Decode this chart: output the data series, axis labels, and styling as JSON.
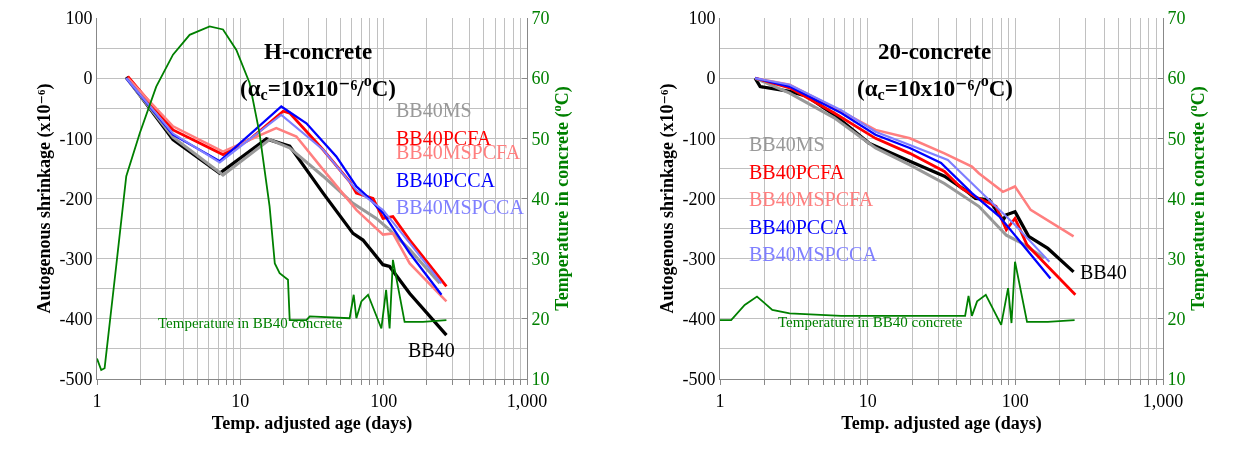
{
  "chart_data": [
    {
      "type": "line",
      "title": "H-concrete",
      "subtitle": "(α$_{c}$=10x10⁻⁶/$^{o}$C)",
      "xlabel": "Temp. adjusted age (days)",
      "ylabel": "Autogenous shrinkage (x10⁻⁶)",
      "y2label": "Temperature in concrete ($^{o}$C)",
      "log": "x",
      "grid": true,
      "legend": false,
      "marker": "none",
      "line_style": "solid",
      "xlim": [
        1,
        1000
      ],
      "xticks": [
        1,
        {
          "value": 2,
          "label": null
        },
        {
          "value": 3,
          "label": null
        },
        {
          "value": 4,
          "label": null
        },
        {
          "value": 5,
          "label": null
        },
        {
          "value": 6,
          "label": null
        },
        {
          "value": 7,
          "label": null
        },
        {
          "value": 8,
          "label": null
        },
        {
          "value": 9,
          "label": null
        },
        10,
        {
          "value": 20,
          "label": null
        },
        {
          "value": 30,
          "label": null
        },
        {
          "value": 40,
          "label": null
        },
        {
          "value": 50,
          "label": null
        },
        {
          "value": 60,
          "label": null
        },
        {
          "value": 70,
          "label": null
        },
        {
          "value": 80,
          "label": null
        },
        {
          "value": 90,
          "label": null
        },
        100,
        {
          "value": 200,
          "label": null
        },
        {
          "value": 300,
          "label": null
        },
        {
          "value": 400,
          "label": null
        },
        {
          "value": 500,
          "label": null
        },
        {
          "value": 600,
          "label": null
        },
        {
          "value": 700,
          "label": null
        },
        {
          "value": 800,
          "label": null
        },
        {
          "value": 900,
          "label": null
        },
        {
          "value": 1000,
          "label": "1,000"
        }
      ],
      "ylim": [
        -500,
        100
      ],
      "yticks": [
        -500,
        {
          "value": -450,
          "label": null
        },
        -400,
        {
          "value": -350,
          "label": null
        },
        -300,
        {
          "value": -250,
          "label": null
        },
        -200,
        {
          "value": -150,
          "label": null
        },
        -100,
        {
          "value": -50,
          "label": null
        },
        0,
        {
          "value": 50,
          "label": null
        },
        100
      ],
      "y2lim": [
        10,
        70
      ],
      "y2ticks": [
        10,
        20,
        30,
        40,
        50,
        60,
        70
      ],
      "series": [
        {
          "name": "BB40",
          "color": "#000000",
          "x": [
            1.6,
            3.39,
            7.18,
            15.2,
            22.1,
            37.8,
            61.1,
            71.7,
            98.9,
            110,
            152,
            274
          ],
          "values": [
            2,
            -102,
            -158,
            -101,
            -113,
            -191,
            -258,
            -269,
            -310,
            -313,
            -358,
            -427
          ]
        },
        {
          "name": "BB40MS",
          "color": "#999999",
          "x": [
            1.6,
            3.39,
            7.57,
            16.0,
            22.1,
            37.8,
            61.1,
            88.9,
            110,
            152,
            246
          ],
          "values": [
            0,
            -98,
            -161,
            -102,
            -116,
            -163,
            -208,
            -233,
            -252,
            -285,
            -341
          ]
        },
        {
          "name": "BB40PCFA",
          "color": "#ff0000",
          "x": [
            1.64,
            3.39,
            7.57,
            11.6,
            19.9,
            22.1,
            37.8,
            57.9,
            64.5,
            84.3,
            98.9,
            116,
            152,
            274
          ],
          "values": [
            3,
            -86,
            -127,
            -102,
            -55,
            -58,
            -119,
            -172,
            -191,
            -200,
            -233,
            -230,
            -269,
            -346
          ]
        },
        {
          "name": "BB40MSPCFA",
          "color": "#ff7f7f",
          "x": [
            1.64,
            3.39,
            7.57,
            17.8,
            24.6,
            37.8,
            64.5,
            98.9,
            116,
            152,
            274
          ],
          "values": [
            0,
            -80,
            -122,
            -83,
            -97,
            -152,
            -219,
            -260,
            -258,
            -308,
            -371
          ]
        },
        {
          "name": "BB40PCCA",
          "color": "#0000ff",
          "x": [
            1.6,
            3.39,
            7.18,
            19.3,
            28.9,
            46.7,
            64.5,
            79.8,
            88.9,
            98.9,
            152,
            253
          ],
          "values": [
            0,
            -94,
            -138,
            -47,
            -75,
            -130,
            -180,
            -200,
            -213,
            -224,
            -291,
            -360
          ]
        },
        {
          "name": "BB40MSPCCA",
          "color": "#7f7fff",
          "x": [
            1.6,
            3.39,
            7.18,
            19.3,
            37.8,
            64.5,
            98.9,
            152,
            253
          ],
          "values": [
            0,
            -92,
            -140,
            -61,
            -119,
            -186,
            -219,
            -274,
            -341
          ]
        },
        {
          "name": "Temperature in BB40 concrete",
          "color": "#008000",
          "axis": "y2",
          "x": [
            1,
            1.07,
            1.13,
            1.36,
            1.6,
            1.99,
            2.59,
            3.39,
            4.43,
            6.11,
            7.57,
            9.38,
            11.6,
            13.6,
            16.0,
            17.4,
            18.8,
            21.5,
            22.1,
            28.9,
            30.5,
            57.9,
            61.8,
            64.5,
            69.9,
            77.8,
            96.4,
            104,
            110,
            116,
            140,
            188,
            274
          ],
          "values": [
            13.4,
            11.5,
            11.8,
            28.7,
            43.7,
            50.9,
            58.6,
            63.9,
            67.2,
            68.6,
            68.1,
            64.7,
            59.2,
            50.9,
            38.7,
            29.2,
            27.6,
            26.5,
            19.8,
            19.8,
            20.4,
            20.1,
            24,
            20.1,
            22.9,
            24,
            18.4,
            24.8,
            18.4,
            29.8,
            19.5,
            19.5,
            19.8
          ]
        }
      ]
    },
    {
      "type": "line",
      "title": "20-concrete",
      "subtitle": "(α$_{c}$=10x10⁻⁶/$^{o}$C)",
      "xlabel": "Temp. adjusted age (days)",
      "ylabel": "Autogenous shrinkage (x10⁻⁶)",
      "y2label": "Temperature in concrete ($^{o}$C)",
      "log": "x",
      "grid": true,
      "legend": false,
      "marker": "none",
      "line_style": "solid",
      "xlim": [
        1,
        1000
      ],
      "xticks": [
        1,
        {
          "value": 2,
          "label": null
        },
        {
          "value": 3,
          "label": null
        },
        {
          "value": 4,
          "label": null
        },
        {
          "value": 5,
          "label": null
        },
        {
          "value": 6,
          "label": null
        },
        {
          "value": 7,
          "label": null
        },
        {
          "value": 8,
          "label": null
        },
        {
          "value": 9,
          "label": null
        },
        10,
        {
          "value": 20,
          "label": null
        },
        {
          "value": 30,
          "label": null
        },
        {
          "value": 40,
          "label": null
        },
        {
          "value": 50,
          "label": null
        },
        {
          "value": 60,
          "label": null
        },
        {
          "value": 70,
          "label": null
        },
        {
          "value": 80,
          "label": null
        },
        {
          "value": 90,
          "label": null
        },
        100,
        {
          "value": 200,
          "label": null
        },
        {
          "value": 300,
          "label": null
        },
        {
          "value": 400,
          "label": null
        },
        {
          "value": 500,
          "label": null
        },
        {
          "value": 600,
          "label": null
        },
        {
          "value": 700,
          "label": null
        },
        {
          "value": 800,
          "label": null
        },
        {
          "value": 900,
          "label": null
        },
        {
          "value": 1000,
          "label": "1,000"
        }
      ],
      "ylim": [
        -500,
        100
      ],
      "yticks": [
        -500,
        {
          "value": -450,
          "label": null
        },
        -400,
        {
          "value": -350,
          "label": null
        },
        -300,
        {
          "value": -250,
          "label": null
        },
        -200,
        {
          "value": -150,
          "label": null
        },
        -100,
        {
          "value": -50,
          "label": null
        },
        0,
        {
          "value": 50,
          "label": null
        },
        100
      ],
      "y2lim": [
        10,
        70
      ],
      "y2ticks": [
        10,
        20,
        30,
        40,
        50,
        60,
        70
      ],
      "series": [
        {
          "name": "BB40",
          "color": "#000000",
          "x": [
            1.73,
            1.87,
            2.96,
            3.87,
            5.94,
            10.2,
            19.3,
            33.1,
            45.7,
            53.7,
            66.5,
            82.4,
            86.9,
            99.5,
            123,
            166,
            248
          ],
          "values": [
            0,
            -14,
            -22,
            -30,
            -61,
            -108,
            -138,
            -163,
            -186,
            -200,
            -202,
            -236,
            -227,
            -222,
            -263,
            -283,
            -322
          ]
        },
        {
          "name": "BB40MS",
          "color": "#999999",
          "x": [
            1.73,
            2.96,
            5.94,
            11.3,
            19.3,
            33.1,
            56.6,
            86.9,
            110,
            157
          ],
          "values": [
            0,
            -25,
            -66,
            -116,
            -144,
            -175,
            -213,
            -261,
            -274,
            -299
          ]
        },
        {
          "name": "BB40PCFA",
          "color": "#ff0000",
          "x": [
            1.73,
            2.96,
            5.94,
            11.3,
            19.3,
            33.1,
            43.3,
            53.7,
            74.0,
            86.9,
            99.5,
            120,
            166,
            255
          ],
          "values": [
            0,
            -16,
            -58,
            -100,
            -125,
            -155,
            -183,
            -197,
            -213,
            -252,
            -233,
            -277,
            -313,
            -360
          ]
        },
        {
          "name": "BB40MSPCFA",
          "color": "#ff7f7f",
          "x": [
            1.73,
            2.96,
            6.62,
            11.3,
            19.3,
            33.1,
            50.8,
            56.6,
            82.4,
            99.5,
            127,
            248
          ],
          "values": [
            0,
            -11,
            -55,
            -86,
            -100,
            -125,
            -147,
            -158,
            -189,
            -180,
            -219,
            -263
          ]
        },
        {
          "name": "BB40PCCA",
          "color": "#0000ff",
          "x": [
            1.73,
            2.96,
            6.62,
            11.3,
            19.3,
            31.4,
            50.8,
            78.1,
            173
          ],
          "values": [
            0,
            -14,
            -58,
            -94,
            -116,
            -141,
            -191,
            -230,
            -333
          ]
        },
        {
          "name": "BB40MSPCCA",
          "color": "#7f7fff",
          "x": [
            1.73,
            2.96,
            6.62,
            11.3,
            19.3,
            34.9,
            56.6,
            96.8,
            170
          ],
          "values": [
            0,
            -11,
            -53,
            -89,
            -111,
            -136,
            -186,
            -241,
            -305
          ]
        },
        {
          "name": "Temperature in BB40 concrete",
          "color": "#008000",
          "axis": "y2",
          "x": [
            1,
            1.19,
            1.47,
            1.78,
            2.26,
            2.96,
            6.62,
            45.7,
            48.2,
            50.8,
            55.1,
            63.1,
            80.2,
            89.3,
            94.2,
            99.5,
            120,
            166,
            252
          ],
          "values": [
            19.8,
            19.8,
            22.3,
            23.7,
            21.5,
            20.9,
            20.5,
            20.5,
            23.8,
            20.5,
            22.9,
            24,
            19,
            25.1,
            19.3,
            29.5,
            19.5,
            19.5,
            19.8
          ]
        }
      ]
    }
  ]
}
